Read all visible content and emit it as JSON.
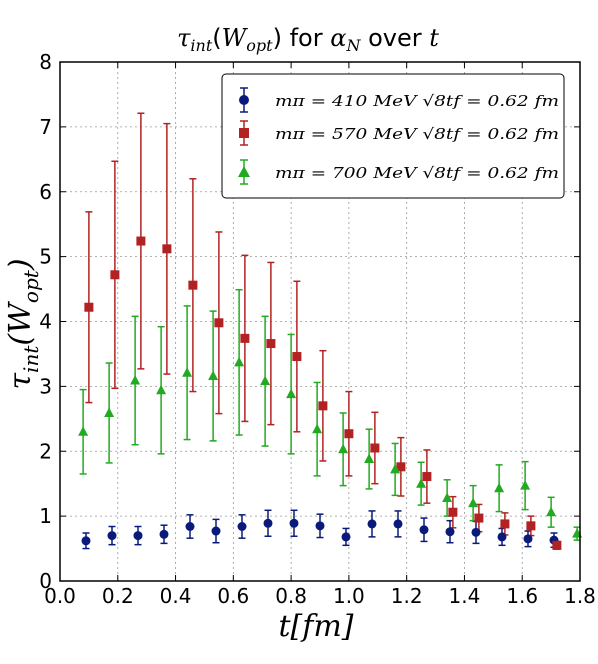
{
  "chart_data": {
    "type": "scatter",
    "title": "τint(Wopt) for αN over t",
    "xlabel": "t[fm]",
    "ylabel": "τint(Wopt)",
    "xlim": [
      0.0,
      1.8
    ],
    "ylim": [
      0,
      8
    ],
    "xticks": [
      "0.0",
      "0.2",
      "0.4",
      "0.6",
      "0.8",
      "1.0",
      "1.2",
      "1.4",
      "1.6",
      "1.8"
    ],
    "yticks": [
      "0",
      "1",
      "2",
      "3",
      "4",
      "5",
      "6",
      "7",
      "8"
    ],
    "grid": true,
    "legend_position": "top-right",
    "series": [
      {
        "name": "mπ = 410 MeV √8tf = 0.62 fm",
        "marker": "circle",
        "color": "#0a1a7a",
        "x": [
          0.09,
          0.18,
          0.27,
          0.36,
          0.45,
          0.54,
          0.63,
          0.72,
          0.81,
          0.9,
          0.99,
          1.08,
          1.17,
          1.26,
          1.35,
          1.44,
          1.53,
          1.62,
          1.71
        ],
        "y": [
          0.62,
          0.7,
          0.7,
          0.72,
          0.84,
          0.77,
          0.84,
          0.89,
          0.89,
          0.85,
          0.68,
          0.88,
          0.88,
          0.79,
          0.76,
          0.75,
          0.68,
          0.65,
          0.63
        ],
        "err": [
          0.12,
          0.14,
          0.14,
          0.14,
          0.18,
          0.18,
          0.18,
          0.2,
          0.2,
          0.18,
          0.13,
          0.2,
          0.2,
          0.18,
          0.17,
          0.17,
          0.13,
          0.12,
          0.11
        ]
      },
      {
        "name": "mπ = 570 MeV √8tf = 0.62 fm",
        "marker": "square",
        "color": "#b22222",
        "x": [
          0.1,
          0.19,
          0.28,
          0.37,
          0.46,
          0.55,
          0.64,
          0.73,
          0.82,
          0.91,
          1.0,
          1.09,
          1.18,
          1.27,
          1.36,
          1.45,
          1.54,
          1.63,
          1.72
        ],
        "y": [
          4.22,
          4.72,
          5.24,
          5.12,
          4.56,
          3.98,
          3.74,
          3.66,
          3.46,
          2.7,
          2.27,
          2.05,
          1.76,
          1.61,
          1.06,
          0.97,
          0.88,
          0.85,
          0.55
        ],
        "err": [
          1.47,
          1.75,
          1.97,
          1.93,
          1.64,
          1.4,
          1.28,
          1.25,
          1.16,
          0.85,
          0.65,
          0.55,
          0.45,
          0.41,
          0.24,
          0.21,
          0.17,
          0.15,
          0.06
        ]
      },
      {
        "name": "mπ = 700 MeV √8tf = 0.62 fm",
        "marker": "triangle",
        "color": "#22aa22",
        "x": [
          0.08,
          0.17,
          0.26,
          0.35,
          0.44,
          0.53,
          0.62,
          0.71,
          0.8,
          0.89,
          0.98,
          1.07,
          1.16,
          1.25,
          1.34,
          1.43,
          1.52,
          1.61,
          1.7,
          1.79
        ],
        "y": [
          2.3,
          2.59,
          3.09,
          2.94,
          3.21,
          3.16,
          3.37,
          3.08,
          2.88,
          2.34,
          2.03,
          1.88,
          1.72,
          1.5,
          1.28,
          1.2,
          1.43,
          1.47,
          1.06,
          0.73
        ],
        "err": [
          0.65,
          0.77,
          0.99,
          0.98,
          1.03,
          1.0,
          1.12,
          1.0,
          0.92,
          0.72,
          0.56,
          0.46,
          0.4,
          0.33,
          0.28,
          0.27,
          0.36,
          0.37,
          0.23,
          0.1
        ]
      }
    ]
  },
  "legend": {
    "entries": [
      {
        "label": "mπ = 410 MeV √8tf = 0.62 fm"
      },
      {
        "label": "mπ = 570 MeV √8tf = 0.62 fm"
      },
      {
        "label": "mπ = 700 MeV √8tf = 0.62 fm"
      }
    ]
  }
}
